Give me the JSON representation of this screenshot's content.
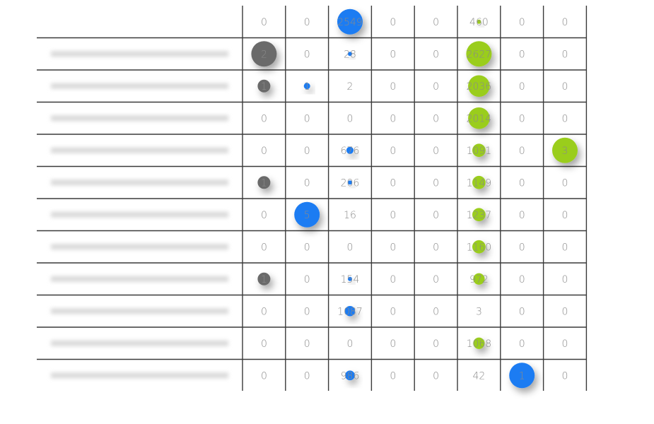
{
  "chart_data": {
    "type": "table",
    "title": "",
    "columns": [
      "",
      "",
      "",
      "",
      "",
      "",
      "",
      ""
    ],
    "rows": [
      {
        "label": "",
        "values": [
          0,
          0,
          2549,
          0,
          0,
          460,
          0,
          0
        ]
      },
      {
        "label": "",
        "values": [
          2,
          0,
          28,
          0,
          0,
          2627,
          0,
          0
        ]
      },
      {
        "label": "",
        "values": [
          1,
          1,
          2,
          0,
          0,
          2036,
          0,
          0
        ]
      },
      {
        "label": "",
        "values": [
          0,
          0,
          0,
          0,
          0,
          2014,
          0,
          0
        ]
      },
      {
        "label": "",
        "values": [
          0,
          0,
          676,
          0,
          0,
          1091,
          0,
          3
        ]
      },
      {
        "label": "",
        "values": [
          1,
          0,
          206,
          0,
          0,
          1149,
          0,
          0
        ]
      },
      {
        "label": "",
        "values": [
          0,
          5,
          16,
          0,
          0,
          1237,
          0,
          0
        ]
      },
      {
        "label": "",
        "values": [
          0,
          0,
          0,
          0,
          0,
          1160,
          0,
          0
        ]
      },
      {
        "label": "",
        "values": [
          1,
          0,
          154,
          0,
          0,
          972,
          0,
          0
        ]
      },
      {
        "label": "",
        "values": [
          0,
          0,
          1087,
          0,
          0,
          3,
          0,
          0
        ]
      },
      {
        "label": "",
        "values": [
          0,
          0,
          0,
          0,
          0,
          1068,
          0,
          0
        ]
      },
      {
        "label": "",
        "values": [
          0,
          0,
          986,
          0,
          0,
          42,
          1,
          0
        ]
      }
    ],
    "bubbles": [
      {
        "row": 0,
        "col": 2,
        "size": 1.0,
        "color": "#1e7cf2"
      },
      {
        "row": 0,
        "col": 5,
        "size": 0.12,
        "color": "#9acd1c"
      },
      {
        "row": 1,
        "col": 0,
        "size": 1.0,
        "color": "#6a6a6a"
      },
      {
        "row": 1,
        "col": 2,
        "size": 0.04,
        "color": "#1e7cf2"
      },
      {
        "row": 1,
        "col": 5,
        "size": 1.0,
        "color": "#9acd1c"
      },
      {
        "row": 2,
        "col": 0,
        "size": 0.5,
        "color": "#6a6a6a"
      },
      {
        "row": 2,
        "col": 1,
        "size": 0.25,
        "color": "#1e7cf2"
      },
      {
        "row": 2,
        "col": 5,
        "size": 0.85,
        "color": "#9acd1c"
      },
      {
        "row": 3,
        "col": 5,
        "size": 0.85,
        "color": "#9acd1c"
      },
      {
        "row": 4,
        "col": 2,
        "size": 0.28,
        "color": "#1e7cf2"
      },
      {
        "row": 4,
        "col": 5,
        "size": 0.52,
        "color": "#9acd1c"
      },
      {
        "row": 4,
        "col": 7,
        "size": 1.0,
        "color": "#9acd1c"
      },
      {
        "row": 5,
        "col": 0,
        "size": 0.5,
        "color": "#6a6a6a"
      },
      {
        "row": 5,
        "col": 2,
        "size": 0.08,
        "color": "#1e7cf2"
      },
      {
        "row": 5,
        "col": 5,
        "size": 0.52,
        "color": "#9acd1c"
      },
      {
        "row": 6,
        "col": 1,
        "size": 1.0,
        "color": "#1e7cf2"
      },
      {
        "row": 6,
        "col": 5,
        "size": 0.52,
        "color": "#9acd1c"
      },
      {
        "row": 7,
        "col": 5,
        "size": 0.52,
        "color": "#9acd1c"
      },
      {
        "row": 8,
        "col": 0,
        "size": 0.5,
        "color": "#6a6a6a"
      },
      {
        "row": 8,
        "col": 2,
        "size": 0.06,
        "color": "#1e7cf2"
      },
      {
        "row": 8,
        "col": 5,
        "size": 0.45,
        "color": "#9acd1c"
      },
      {
        "row": 9,
        "col": 2,
        "size": 0.4,
        "color": "#1e7cf2"
      },
      {
        "row": 10,
        "col": 5,
        "size": 0.45,
        "color": "#9acd1c"
      },
      {
        "row": 11,
        "col": 2,
        "size": 0.38,
        "color": "#1e7cf2"
      },
      {
        "row": 11,
        "col": 6,
        "size": 1.0,
        "color": "#1e7cf2"
      }
    ]
  }
}
